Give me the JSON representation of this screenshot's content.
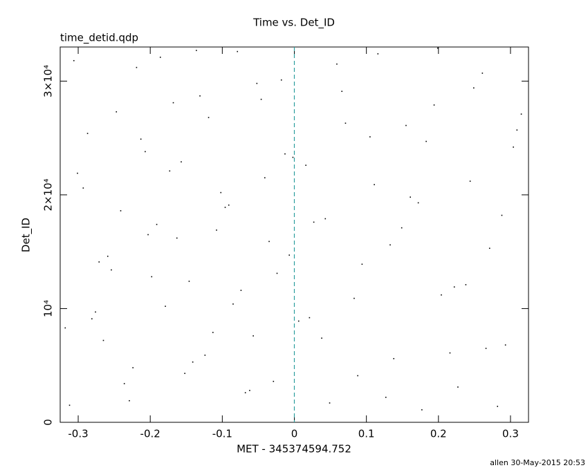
{
  "chart_data": {
    "type": "scatter",
    "title": "Time vs. Det_ID",
    "subtitle": "time_detid.qdp",
    "x_label": "MET - 345374594.752",
    "y_label": "Det_ID",
    "footer": "allen 30-May-2015 20:53",
    "color": "#000000",
    "xlim": [
      -0.325,
      0.325
    ],
    "ylim": [
      0,
      33000
    ],
    "xticks": [
      -0.3,
      -0.2,
      -0.1,
      0,
      0.1,
      0.2,
      0.3
    ],
    "yticks": [
      0,
      {
        "value": 10000,
        "label": "10⁴"
      },
      {
        "value": 20000,
        "label": "2×10⁴"
      },
      {
        "value": 30000,
        "label": "3×10⁴"
      }
    ],
    "reference_line": {
      "x": 0,
      "color": "#2a9d9d"
    },
    "x": [
      -0.312,
      -0.287,
      -0.265,
      -0.241,
      -0.219,
      -0.198,
      -0.173,
      -0.152,
      -0.131,
      -0.108,
      -0.085,
      -0.062,
      -0.041,
      -0.018,
      0.006,
      0.027,
      0.049,
      0.071,
      0.094,
      0.116,
      0.138,
      0.161,
      0.183,
      0.204,
      0.227,
      0.249,
      0.271,
      0.293,
      0.315,
      -0.301,
      -0.276,
      -0.254,
      -0.229,
      -0.207,
      -0.186,
      -0.163,
      -0.141,
      -0.119,
      -0.096,
      -0.074,
      -0.052,
      -0.029,
      -0.007,
      0.016,
      0.038,
      0.059,
      0.083,
      0.105,
      0.127,
      0.149,
      0.172,
      0.194,
      0.216,
      0.238,
      0.261,
      0.282,
      0.304,
      -0.318,
      -0.293,
      -0.271,
      -0.247,
      -0.224,
      -0.203,
      -0.179,
      -0.157,
      -0.136,
      -0.113,
      -0.091,
      -0.068,
      -0.046,
      -0.024,
      -0.002,
      0.021,
      0.043,
      0.066,
      0.088,
      0.111,
      0.133,
      0.155,
      0.177,
      0.199,
      0.222,
      0.244,
      0.266,
      0.288,
      0.309,
      -0.306,
      -0.281,
      -0.259,
      -0.236,
      -0.213,
      -0.191,
      -0.168,
      -0.146,
      -0.124,
      -0.102,
      -0.079,
      -0.057,
      -0.035,
      -0.013
    ],
    "values": [
      1500,
      25400,
      7200,
      18600,
      31200,
      12800,
      22100,
      4300,
      28700,
      16900,
      10400,
      2800,
      21500,
      30100,
      8900,
      17600,
      1700,
      26300,
      13900,
      32400,
      5600,
      19800,
      24700,
      11200,
      3100,
      29400,
      15300,
      6800,
      27100,
      21900,
      9700,
      13400,
      1900,
      23800,
      32100,
      16200,
      5300,
      26800,
      18900,
      11600,
      29800,
      3600,
      14700,
      22600,
      7400,
      31500,
      10900,
      25100,
      2200,
      17100,
      19300,
      27900,
      6100,
      12100,
      30700,
      1400,
      24200,
      8300,
      20600,
      14100,
      27300,
      4800,
      16500,
      10200,
      22900,
      32700,
      7900,
      19100,
      2600,
      28400,
      13100,
      23300,
      9200,
      17900,
      29100,
      4100,
      20900,
      15600,
      26100,
      1100,
      32900,
      11900,
      21200,
      6500,
      18200,
      25700,
      31800,
      9100,
      14600,
      3400,
      24900,
      17400,
      28100,
      12400,
      5900,
      20200,
      32600,
      7600,
      15900,
      23600
    ]
  }
}
